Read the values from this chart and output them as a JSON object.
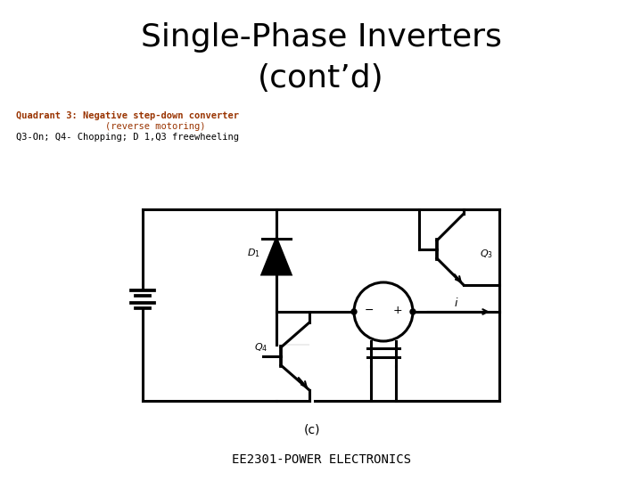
{
  "title_line1": "Single-Phase Inverters",
  "title_line2": "(cont’d)",
  "subtitle_bold": "Quadrant 3: Negative step-down converter",
  "subtitle_line2": "                (reverse motoring)",
  "subtitle_line3": "Q3-On; Q4- Chopping; D 1,Q3 freewheeling",
  "label_c": "(c)",
  "footer": "EE2301-POWER ELECTRONICS",
  "bg_color": "#ffffff",
  "line_color": "#000000",
  "subtitle_color": "#993300",
  "title_fontsize": 26,
  "subtitle_fontsize": 7.5,
  "footer_fontsize": 10
}
